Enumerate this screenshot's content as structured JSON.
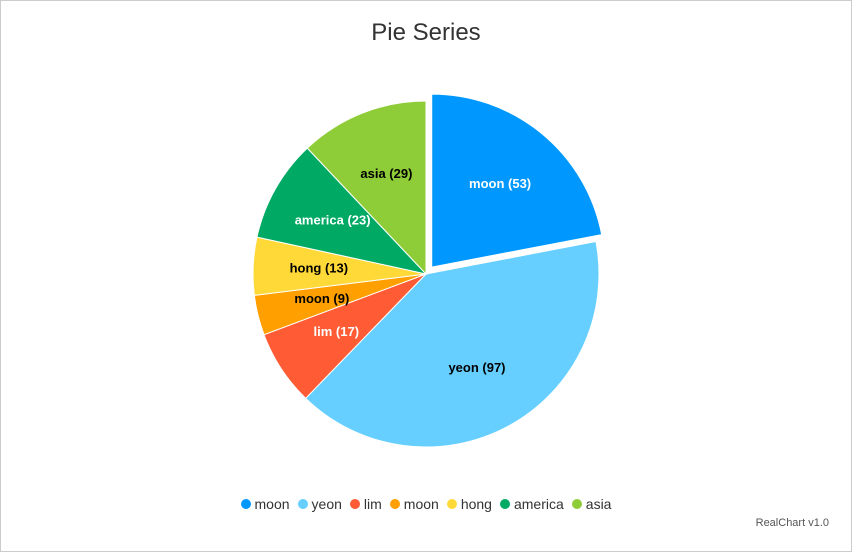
{
  "chart_data": {
    "type": "pie",
    "title": "Pie Series",
    "slices": [
      {
        "name": "moon",
        "value": 53,
        "label": "moon (53)",
        "color": "#0098ff",
        "label_color": "#ffffff",
        "exploded": true
      },
      {
        "name": "yeon",
        "value": 97,
        "label": "yeon (97)",
        "color": "#66cfff",
        "label_color": "#000000"
      },
      {
        "name": "lim",
        "value": 17,
        "label": "lim (17)",
        "color": "#ff5c35",
        "label_color": "#ffffff"
      },
      {
        "name": "moon",
        "value": 9,
        "label": "moon (9)",
        "color": "#ffa000",
        "label_color": "#000000"
      },
      {
        "name": "hong",
        "value": 13,
        "label": "hong (13)",
        "color": "#ffd938",
        "label_color": "#000000"
      },
      {
        "name": "america",
        "value": 23,
        "label": "america (23)",
        "color": "#00aa65",
        "label_color": "#ffffff"
      },
      {
        "name": "asia",
        "value": 29,
        "label": "asia (29)",
        "color": "#8fcd38",
        "label_color": "#000000"
      }
    ],
    "legend_position": "bottom"
  },
  "credits": "RealChart v1.0"
}
